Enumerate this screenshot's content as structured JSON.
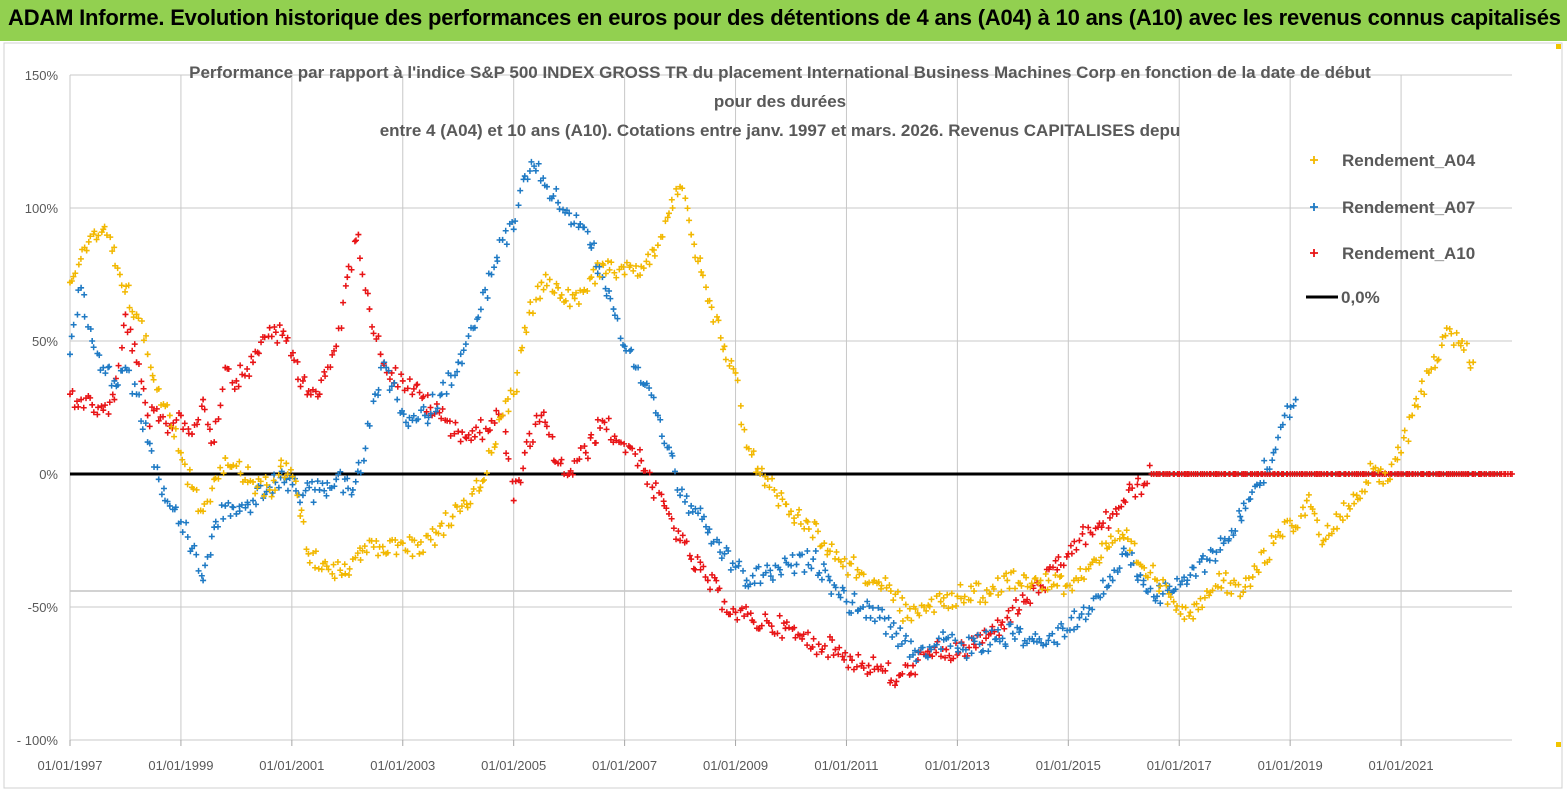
{
  "banner": {
    "title": "ADAM Informe. Evolution historique des performances en euros pour des détentions de 4 ans (A04) à 10 ans (A10) avec les revenus connus capitalisés"
  },
  "colors": {
    "banner_bg": "#92d050",
    "A04": "#f2b800",
    "A07": "#1f7ac4",
    "A10": "#e81416",
    "zero": "#000000",
    "grid": "#c8c8c8",
    "text": "#595959"
  },
  "chart_data": {
    "type": "scatter",
    "title": [
      "Performance par rapport à l'indice S&P 500 INDEX GROSS TR  du placement International Business Machines Corp en fonction de la date de début",
      "pour des durées",
      "entre 4 (A04) et 10 ans (A10). Cotations entre janv. 1997 et mars. 2026. Revenus CAPITALISES depu"
    ],
    "xlabel": "",
    "ylabel": "",
    "x_range": [
      "1997-01-01",
      "2022-12-31"
    ],
    "xticks": [
      "01/01/1997",
      "01/01/1999",
      "01/01/2001",
      "01/01/2003",
      "01/01/2005",
      "01/01/2007",
      "01/01/2009",
      "01/01/2011",
      "01/01/2013",
      "01/01/2015",
      "01/01/2017",
      "01/01/2019",
      "01/01/2021"
    ],
    "ylim": [
      -100,
      150
    ],
    "yticks": [
      150,
      100,
      50,
      0,
      -50,
      -100
    ],
    "ytick_labels": [
      "150%",
      "100%",
      "50%",
      "0%",
      "-50%",
      "- 100%"
    ],
    "legend_position": "right",
    "legend": [
      "Rendement_A04",
      "Rendement_A07",
      "Rendement_A10",
      "0,0%"
    ],
    "series": [
      {
        "name": "Rendement_A04",
        "marker": "plus",
        "x": [
          1997.0,
          1997.3,
          1997.6,
          1997.9,
          1998.2,
          1998.4,
          1998.6,
          1998.8,
          1999.0,
          1999.2,
          1999.4,
          1999.6,
          1999.8,
          2000.0,
          2000.3,
          2000.6,
          2000.9,
          2001.1,
          2001.3,
          2001.6,
          2001.9,
          2002.1,
          2002.4,
          2002.7,
          2003.0,
          2003.3,
          2003.6,
          2003.9,
          2004.1,
          2004.4,
          2004.6,
          2004.8,
          2005.0,
          2005.2,
          2005.5,
          2005.8,
          2006.1,
          2006.4,
          2006.7,
          2007.0,
          2007.3,
          2007.6,
          2007.8,
          2008.0,
          2008.2,
          2008.5,
          2008.8,
          2009.0,
          2009.2,
          2009.4,
          2009.7,
          2010.0,
          2010.3,
          2010.6,
          2010.9,
          2011.2,
          2011.5,
          2011.8,
          2012.1,
          2012.4,
          2012.7,
          2013.0,
          2013.3,
          2013.6,
          2013.9,
          2014.2,
          2014.5,
          2014.8,
          2015.1,
          2015.4,
          2015.7,
          2016.0,
          2016.3,
          2016.6,
          2016.9,
          2017.2,
          2017.5,
          2017.8,
          2018.1,
          2018.4,
          2018.7,
          2018.9,
          2019.1,
          2019.3,
          2019.6,
          2019.9,
          2020.2,
          2020.5,
          2020.8,
          2021.0,
          2021.2,
          2021.5,
          2021.8,
          2022.1,
          2022.3
        ],
        "y": [
          72,
          84,
          92,
          75,
          60,
          45,
          32,
          22,
          8,
          -5,
          -14,
          -2,
          6,
          3,
          -3,
          -6,
          4,
          -8,
          -30,
          -33,
          -38,
          -32,
          -25,
          -30,
          -26,
          -30,
          -22,
          -16,
          -10,
          -5,
          8,
          22,
          30,
          55,
          72,
          70,
          66,
          74,
          80,
          75,
          78,
          86,
          98,
          108,
          90,
          65,
          48,
          38,
          10,
          2,
          -6,
          -14,
          -18,
          -26,
          -33,
          -36,
          -40,
          -44,
          -54,
          -50,
          -48,
          -46,
          -44,
          -45,
          -40,
          -38,
          -40,
          -42,
          -40,
          -34,
          -28,
          -24,
          -34,
          -40,
          -48,
          -52,
          -44,
          -40,
          -46,
          -36,
          -26,
          -18,
          -20,
          -10,
          -25,
          -16,
          -8,
          2,
          -2,
          8,
          22,
          38,
          52,
          50,
          42
        ]
      },
      {
        "name": "Rendement_A07",
        "marker": "plus",
        "x": [
          1997.0,
          1997.2,
          1997.4,
          1997.6,
          1997.8,
          1998.0,
          1998.2,
          1998.4,
          1998.6,
          1998.8,
          1999.0,
          1999.2,
          1999.4,
          1999.6,
          1999.8,
          2000.0,
          2000.3,
          2000.6,
          2000.9,
          2001.2,
          2001.5,
          2001.8,
          2002.1,
          2002.3,
          2002.5,
          2002.7,
          2002.9,
          2003.1,
          2003.4,
          2003.7,
          2004.0,
          2004.3,
          2004.6,
          2004.8,
          2005.0,
          2005.2,
          2005.4,
          2005.6,
          2005.8,
          2006.0,
          2006.2,
          2006.4,
          2006.6,
          2006.8,
          2007.0,
          2007.2,
          2007.4,
          2007.6,
          2007.8,
          2008.0,
          2008.2,
          2008.5,
          2008.8,
          2009.0,
          2009.2,
          2009.5,
          2009.8,
          2010.1,
          2010.4,
          2010.7,
          2011.0,
          2011.3,
          2011.6,
          2011.9,
          2012.2,
          2012.5,
          2012.8,
          2013.1,
          2013.4,
          2013.7,
          2014.0,
          2014.3,
          2014.6,
          2014.9,
          2015.2,
          2015.5,
          2015.8,
          2016.0,
          2016.3,
          2016.6,
          2016.9,
          2017.2,
          2017.5,
          2017.8,
          2018.1,
          2018.4,
          2018.7,
          2018.9,
          2019.1
        ],
        "y": [
          45,
          70,
          50,
          40,
          35,
          40,
          30,
          12,
          -2,
          -12,
          -18,
          -28,
          -40,
          -20,
          -12,
          -15,
          -10,
          -5,
          -2,
          -8,
          -6,
          -2,
          -6,
          5,
          30,
          40,
          28,
          18,
          22,
          30,
          42,
          55,
          75,
          88,
          92,
          112,
          114,
          108,
          102,
          98,
          94,
          85,
          74,
          62,
          48,
          40,
          34,
          22,
          10,
          -8,
          -12,
          -22,
          -30,
          -35,
          -40,
          -38,
          -36,
          -34,
          -32,
          -40,
          -48,
          -50,
          -54,
          -60,
          -68,
          -65,
          -62,
          -66,
          -64,
          -62,
          -60,
          -62,
          -64,
          -58,
          -54,
          -46,
          -40,
          -28,
          -38,
          -46,
          -44,
          -38,
          -32,
          -26,
          -16,
          -4,
          8,
          22,
          28
        ]
      },
      {
        "name": "Rendement_A10",
        "marker": "plus",
        "x": [
          1997.0,
          1997.2,
          1997.4,
          1997.6,
          1997.8,
          1998.0,
          1998.2,
          1998.4,
          1998.6,
          1998.8,
          1999.0,
          1999.2,
          1999.4,
          1999.6,
          1999.8,
          2000.0,
          2000.3,
          2000.6,
          2000.9,
          2001.2,
          2001.5,
          2001.8,
          2002.0,
          2002.2,
          2002.4,
          2002.6,
          2002.8,
          2003.0,
          2003.2,
          2003.5,
          2003.8,
          2004.0,
          2004.3,
          2004.6,
          2004.8,
          2005.0,
          2005.2,
          2005.5,
          2005.8,
          2006.0,
          2006.3,
          2006.6,
          2006.9,
          2007.1,
          2007.3,
          2007.5,
          2007.8,
          2008.0,
          2008.2,
          2008.5,
          2008.8,
          2009.0,
          2009.3,
          2009.6,
          2009.9,
          2010.2,
          2010.5,
          2010.8,
          2011.1,
          2011.4,
          2011.7,
          2011.9,
          2012.2,
          2012.5,
          2012.8,
          2013.0,
          2013.3,
          2013.6,
          2013.9,
          2014.2,
          2014.5,
          2014.8,
          2015.0,
          2015.2,
          2015.4,
          2015.6,
          2015.8,
          2016.0,
          2016.5,
          2017.0,
          2017.5,
          2018.0,
          2018.5,
          2019.0,
          2019.5,
          2020.0,
          2020.5,
          2021.0,
          2021.5,
          2022.0,
          2022.5,
          2023.0
        ],
        "y": [
          30,
          28,
          26,
          24,
          28,
          60,
          42,
          22,
          20,
          18,
          22,
          15,
          28,
          12,
          40,
          35,
          42,
          55,
          50,
          35,
          30,
          48,
          74,
          90,
          62,
          45,
          38,
          35,
          32,
          25,
          20,
          16,
          14,
          20,
          22,
          -10,
          8,
          22,
          4,
          0,
          8,
          20,
          12,
          10,
          5,
          -5,
          -15,
          -25,
          -32,
          -40,
          -48,
          -52,
          -55,
          -56,
          -58,
          -62,
          -64,
          -66,
          -70,
          -72,
          -74,
          -78,
          -72,
          -68,
          -66,
          -68,
          -64,
          -60,
          -54,
          -48,
          -42,
          -36,
          -30,
          -25,
          -22,
          -20,
          -15,
          -10,
          0,
          0,
          0,
          0,
          0,
          0,
          0,
          0,
          0,
          0,
          0,
          0,
          0,
          0
        ]
      },
      {
        "name": "0,0%",
        "type": "line",
        "x": [
          1997.0,
          2023.0
        ],
        "y": [
          0,
          0
        ]
      }
    ]
  }
}
